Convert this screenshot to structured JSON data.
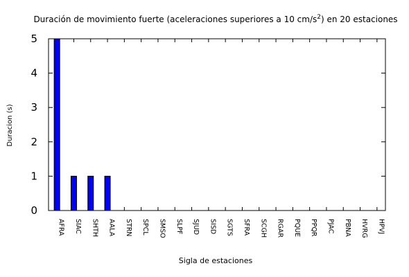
{
  "chart_data": {
    "type": "bar",
    "title": "Duración de movimiento fuerte (aceleraciones superiores a 10 cm/s",
    "title_superscript": "2",
    "title_end": ") en 20 estaciones",
    "xlabel": "Sigla de estaciones",
    "ylabel": "Duracion (s)",
    "ylim": [
      0,
      5
    ],
    "yticks": [
      "0",
      "1",
      "2",
      "3",
      "4",
      "5"
    ],
    "categories": [
      "AFRA",
      "SIAC",
      "SHTH",
      "AALA",
      "STRN",
      "SPCL",
      "SMSO",
      "SLPF",
      "SJUD",
      "SISD",
      "SGTS",
      "SFRA",
      "SCGH",
      "RGAR",
      "PQUE",
      "PPQR",
      "PJAC",
      "PBNA",
      "HVRG",
      "HPVJ"
    ],
    "values": [
      5,
      1,
      1,
      1,
      0,
      0,
      0,
      0,
      0,
      0,
      0,
      0,
      0,
      0,
      0,
      0,
      0,
      0,
      0,
      0
    ],
    "bar_color": "#0000ff",
    "bar_outline": "#000000",
    "grid": false,
    "legend": "none"
  }
}
